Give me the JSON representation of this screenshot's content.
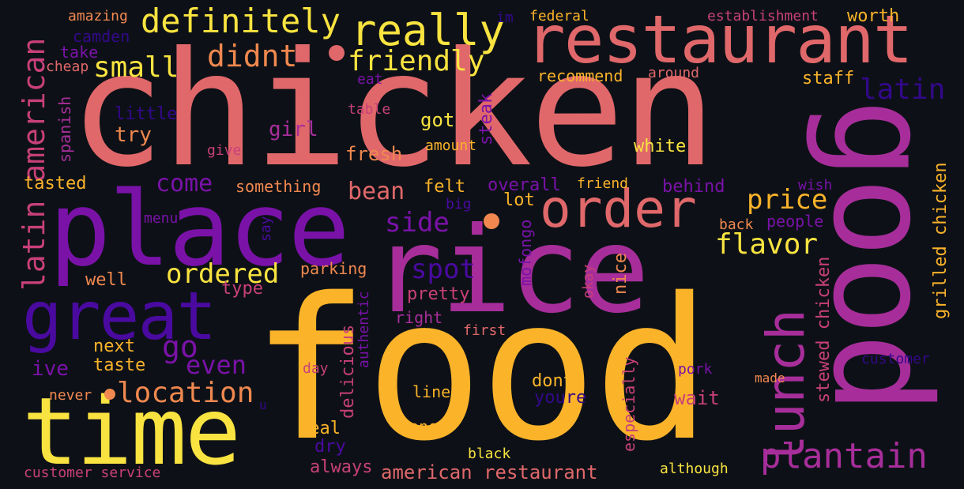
{
  "palette": {
    "background": "#0d1117",
    "yellow": "#f9e340",
    "amber": "#fbb32a",
    "orange": "#f0884f",
    "coral": "#e0686a",
    "rose": "#c8407a",
    "magenta": "#a72e9a",
    "purple": "#7a12a8",
    "indigo": "#4a0aa0",
    "deep": "#33088a"
  },
  "words": [
    "chicken",
    "food",
    "place",
    "rice",
    "good",
    "restaurant",
    "time",
    "great",
    "order",
    "lunch",
    "plantain",
    "really",
    "definitely",
    "friendly",
    "didnt",
    "small",
    "latin american",
    "latin",
    "location",
    "ordered",
    "flavor",
    "price",
    "spot",
    "go",
    "even",
    "side",
    "bean",
    "come",
    "american restaurant",
    "grilled chicken",
    "stewed chicken",
    "customer service",
    "customer",
    "delicious",
    "especially",
    "pretty",
    "nice",
    "youre",
    "wait",
    "dont",
    "ive",
    "next",
    "taste",
    "well",
    "type",
    "parking",
    "something",
    "overall",
    "felt",
    "behind",
    "people",
    "lot",
    "white",
    "got",
    "steak",
    "came",
    "fresh",
    "amount",
    "girl",
    "try",
    "little",
    "spanish",
    "tasted",
    "give",
    "table",
    "eat",
    "recommend",
    "around",
    "staff",
    "establishment",
    "worth",
    "federal",
    "im",
    "amazing",
    "camden",
    "take",
    "cheap",
    "friend",
    "wish",
    "menu",
    "say",
    "big",
    "back",
    "mofongo",
    "okay",
    "authentic",
    "first",
    "right",
    "day",
    "pork",
    "made",
    "line",
    "one",
    "meal",
    "dry",
    "always",
    "black",
    "although",
    "never",
    "u"
  ]
}
